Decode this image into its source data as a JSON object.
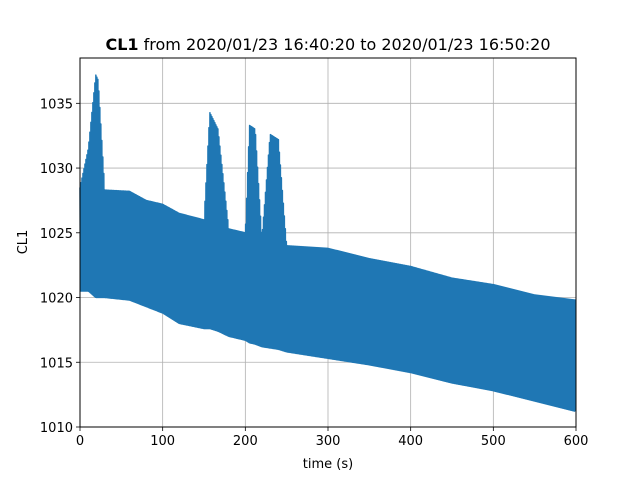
{
  "chart_data": {
    "type": "line",
    "title_bold": "CL1",
    "title_rest": " from 2020/01/23 16:40:20 to 2020/01/23 16:50:20",
    "xlabel": "time (s)",
    "ylabel": "CL1",
    "xlim": [
      0,
      600
    ],
    "ylim": [
      1010,
      1038.5
    ],
    "xticks": [
      0,
      100,
      200,
      300,
      400,
      500,
      600
    ],
    "yticks": [
      1010,
      1015,
      1020,
      1025,
      1030,
      1035
    ],
    "grid": true,
    "legend": "none",
    "series": [
      {
        "color": "#1f77b4",
        "envelope": [
          {
            "x": 0,
            "min": 1020.5,
            "max": 1028.5
          },
          {
            "x": 10,
            "min": 1020.5,
            "max": 1031.5
          },
          {
            "x": 19,
            "min": 1020.0,
            "max": 1037.2
          },
          {
            "x": 22,
            "min": 1020.0,
            "max": 1036.8
          },
          {
            "x": 30,
            "min": 1020.0,
            "max": 1028.3
          },
          {
            "x": 60,
            "min": 1019.8,
            "max": 1028.2
          },
          {
            "x": 80,
            "min": 1019.3,
            "max": 1027.5
          },
          {
            "x": 100,
            "min": 1018.8,
            "max": 1027.2
          },
          {
            "x": 120,
            "min": 1018.0,
            "max": 1026.5
          },
          {
            "x": 150,
            "min": 1017.6,
            "max": 1026.0
          },
          {
            "x": 157,
            "min": 1017.6,
            "max": 1034.3
          },
          {
            "x": 167,
            "min": 1017.4,
            "max": 1033.0
          },
          {
            "x": 180,
            "min": 1017.0,
            "max": 1025.3
          },
          {
            "x": 200,
            "min": 1016.7,
            "max": 1025.0
          },
          {
            "x": 205,
            "min": 1016.5,
            "max": 1033.3
          },
          {
            "x": 212,
            "min": 1016.4,
            "max": 1033.0
          },
          {
            "x": 220,
            "min": 1016.2,
            "max": 1024.6
          },
          {
            "x": 230,
            "min": 1016.1,
            "max": 1032.6
          },
          {
            "x": 240,
            "min": 1016.0,
            "max": 1032.2
          },
          {
            "x": 250,
            "min": 1015.8,
            "max": 1024.0
          },
          {
            "x": 300,
            "min": 1015.3,
            "max": 1023.8
          },
          {
            "x": 350,
            "min": 1014.8,
            "max": 1023.0
          },
          {
            "x": 400,
            "min": 1014.2,
            "max": 1022.4
          },
          {
            "x": 450,
            "min": 1013.4,
            "max": 1021.5
          },
          {
            "x": 500,
            "min": 1012.8,
            "max": 1021.0
          },
          {
            "x": 550,
            "min": 1012.0,
            "max": 1020.2
          },
          {
            "x": 600,
            "min": 1011.2,
            "max": 1019.8
          }
        ]
      }
    ]
  }
}
